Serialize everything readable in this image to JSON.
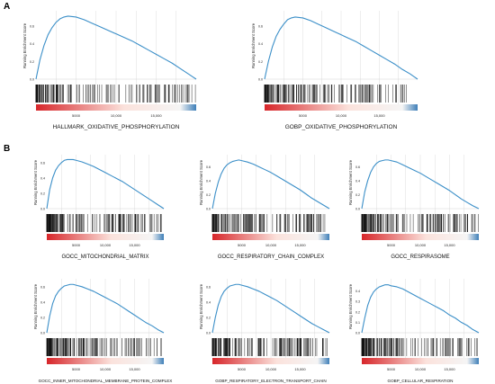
{
  "panels": [
    {
      "letter": "A"
    },
    {
      "letter": "B"
    }
  ],
  "colors": {
    "curve": "#3b8fc8",
    "grid": "#dedede",
    "hits": "#111111",
    "rank_start": "#d7262a",
    "rank_mid_light": "#fbe2dc",
    "rank_end_blue": "#3f7fb8"
  },
  "chart_data": [
    {
      "type": "line",
      "panel": "A",
      "title": "HALLMARK_OXIDATIVE_PHOSPHORYLATION",
      "ylabel": "Running Enrichment Score",
      "xlim": [
        0,
        20000
      ],
      "ylim": [
        0,
        0.75
      ],
      "yticks": [
        "0.6",
        "0.4",
        "0.2",
        "0.0"
      ],
      "xticks": [
        "5000",
        "10,000",
        "15,000"
      ],
      "x": [
        0,
        500,
        1000,
        1500,
        2000,
        2500,
        3000,
        3500,
        4000,
        5000,
        6000,
        7000,
        8000,
        9000,
        10000,
        11000,
        12000,
        13000,
        14000,
        15000,
        16000,
        17000,
        18000,
        19000,
        19500,
        20000
      ],
      "y": [
        0.0,
        0.22,
        0.38,
        0.5,
        0.58,
        0.64,
        0.68,
        0.7,
        0.71,
        0.7,
        0.67,
        0.63,
        0.59,
        0.55,
        0.51,
        0.47,
        0.43,
        0.38,
        0.33,
        0.28,
        0.23,
        0.18,
        0.12,
        0.06,
        0.03,
        0.0
      ]
    },
    {
      "type": "line",
      "panel": "A",
      "title": "GOBP_OXIDATIVE_PHOSPHORYLATION",
      "ylabel": "Running Enrichment Score",
      "xlim": [
        0,
        20000
      ],
      "ylim": [
        0,
        0.75
      ],
      "yticks": [
        "0.6",
        "0.4",
        "0.2",
        "0.0"
      ],
      "xticks": [
        "5000",
        "10,000",
        "15,000"
      ],
      "x": [
        0,
        500,
        1000,
        1500,
        2000,
        2500,
        3000,
        3500,
        4000,
        5000,
        6000,
        7000,
        8000,
        9000,
        10000,
        11000,
        12000,
        13000,
        14000,
        15000,
        16000,
        17000,
        18000,
        19000,
        19500,
        20000
      ],
      "y": [
        0.0,
        0.2,
        0.36,
        0.48,
        0.56,
        0.62,
        0.67,
        0.69,
        0.7,
        0.69,
        0.66,
        0.62,
        0.58,
        0.54,
        0.5,
        0.46,
        0.42,
        0.37,
        0.32,
        0.27,
        0.22,
        0.17,
        0.11,
        0.06,
        0.03,
        0.0
      ]
    },
    {
      "type": "line",
      "panel": "B",
      "title": "GOCC_MITOCHONDRIAL_MATRIX",
      "ylabel": "Running Enrichment Score",
      "xlim": [
        0,
        20000
      ],
      "ylim": [
        0,
        0.68
      ],
      "yticks": [
        "0.6",
        "0.4",
        "0.2",
        "0.0"
      ],
      "xticks": [
        "5000",
        "10,000",
        "15,000"
      ],
      "x": [
        0,
        500,
        1000,
        1500,
        2000,
        2500,
        3000,
        3500,
        4000,
        4500,
        5000,
        6000,
        7000,
        8000,
        9000,
        10000,
        11000,
        12000,
        13000,
        14000,
        15000,
        16000,
        17000,
        18000,
        19000,
        20000
      ],
      "y": [
        0.0,
        0.25,
        0.4,
        0.5,
        0.56,
        0.6,
        0.63,
        0.64,
        0.64,
        0.64,
        0.63,
        0.61,
        0.58,
        0.55,
        0.51,
        0.47,
        0.43,
        0.39,
        0.35,
        0.3,
        0.25,
        0.2,
        0.15,
        0.1,
        0.05,
        0.0
      ]
    },
    {
      "type": "line",
      "panel": "B",
      "title": "GOCC_RESPIRATORY_CHAIN_COMPLEX",
      "ylabel": "Running Enrichment Score",
      "xlim": [
        0,
        20000
      ],
      "ylim": [
        0,
        0.75
      ],
      "yticks": [
        "0.6",
        "0.4",
        "0.2",
        "0.0"
      ],
      "xticks": [
        "5000",
        "10,000",
        "15,000"
      ],
      "x": [
        0,
        500,
        1000,
        1500,
        2000,
        2500,
        3000,
        3500,
        4000,
        4500,
        5000,
        6000,
        7000,
        8000,
        9000,
        10000,
        11000,
        12000,
        13000,
        14000,
        15000,
        16000,
        17000,
        18000,
        19000,
        20000
      ],
      "y": [
        0.0,
        0.22,
        0.38,
        0.5,
        0.58,
        0.63,
        0.66,
        0.68,
        0.69,
        0.7,
        0.69,
        0.67,
        0.64,
        0.6,
        0.56,
        0.52,
        0.47,
        0.42,
        0.37,
        0.32,
        0.27,
        0.21,
        0.15,
        0.1,
        0.05,
        0.0
      ]
    },
    {
      "type": "line",
      "panel": "B",
      "title": "GOCC_RESPIRASOME",
      "ylabel": "Running Enrichment Score",
      "xlim": [
        0,
        20000
      ],
      "ylim": [
        0,
        0.75
      ],
      "yticks": [
        "0.6",
        "0.4",
        "0.2",
        "0.0"
      ],
      "xticks": [
        "5000",
        "10,000",
        "15,000"
      ],
      "x": [
        0,
        500,
        1000,
        1500,
        2000,
        2500,
        3000,
        3500,
        4000,
        4500,
        5000,
        6000,
        7000,
        8000,
        9000,
        10000,
        11000,
        12000,
        13000,
        14000,
        15000,
        16000,
        17000,
        18000,
        19000,
        20000
      ],
      "y": [
        0.0,
        0.24,
        0.4,
        0.52,
        0.6,
        0.65,
        0.68,
        0.69,
        0.7,
        0.7,
        0.69,
        0.67,
        0.63,
        0.59,
        0.55,
        0.51,
        0.46,
        0.41,
        0.36,
        0.31,
        0.26,
        0.2,
        0.14,
        0.09,
        0.04,
        0.0
      ]
    },
    {
      "type": "line",
      "panel": "B",
      "title": "GOCC_INNER_MITOCHONDRIAL_MEMBRANE_PROTEIN_COMPLEX",
      "ylabel": "Running Enrichment Score",
      "xlim": [
        0,
        20000
      ],
      "ylim": [
        0,
        0.68
      ],
      "yticks": [
        "0.6",
        "0.4",
        "0.2",
        "0.0"
      ],
      "xticks": [
        "5000",
        "10,000",
        "15,000"
      ],
      "x": [
        0,
        500,
        1000,
        1500,
        2000,
        2500,
        3000,
        3500,
        4000,
        4500,
        5000,
        6000,
        7000,
        8000,
        9000,
        10000,
        11000,
        12000,
        13000,
        14000,
        15000,
        16000,
        17000,
        18000,
        19000,
        20000
      ],
      "y": [
        0.0,
        0.22,
        0.38,
        0.48,
        0.54,
        0.58,
        0.61,
        0.62,
        0.63,
        0.63,
        0.62,
        0.6,
        0.57,
        0.54,
        0.5,
        0.46,
        0.42,
        0.38,
        0.33,
        0.28,
        0.23,
        0.18,
        0.13,
        0.09,
        0.04,
        0.0
      ]
    },
    {
      "type": "line",
      "panel": "B",
      "title": "GOBP_RESPIRATORY_ELECTRON_TRANSPORT_CHAIN",
      "ylabel": "Running Enrichment Score",
      "xlim": [
        0,
        20000
      ],
      "ylim": [
        0,
        0.68
      ],
      "yticks": [
        "0.6",
        "0.4",
        "0.2",
        "0.0"
      ],
      "xticks": [
        "5000",
        "10,000",
        "15,000"
      ],
      "x": [
        0,
        500,
        1000,
        1500,
        2000,
        2500,
        3000,
        3500,
        4000,
        4500,
        5000,
        6000,
        7000,
        8000,
        9000,
        10000,
        11000,
        12000,
        13000,
        14000,
        15000,
        16000,
        17000,
        18000,
        19000,
        20000
      ],
      "y": [
        0.0,
        0.2,
        0.36,
        0.47,
        0.54,
        0.58,
        0.61,
        0.62,
        0.63,
        0.63,
        0.62,
        0.6,
        0.57,
        0.54,
        0.5,
        0.46,
        0.42,
        0.37,
        0.32,
        0.27,
        0.22,
        0.17,
        0.12,
        0.08,
        0.04,
        0.0
      ]
    },
    {
      "type": "line",
      "panel": "B",
      "title": "GOBP_CELLULAR_RESPIRATION",
      "ylabel": "Running Enrichment Score",
      "xlim": [
        0,
        20000
      ],
      "ylim": [
        0,
        0.5
      ],
      "yticks": [
        "0.4",
        "0.3",
        "0.2",
        "0.1",
        "0.0"
      ],
      "xticks": [
        "5000",
        "10,000",
        "15,000"
      ],
      "x": [
        0,
        500,
        1000,
        1500,
        2000,
        2500,
        3000,
        3500,
        4000,
        4500,
        5000,
        6000,
        7000,
        8000,
        9000,
        10000,
        11000,
        12000,
        13000,
        14000,
        15000,
        16000,
        17000,
        18000,
        19000,
        20000
      ],
      "y": [
        0.0,
        0.14,
        0.26,
        0.34,
        0.39,
        0.42,
        0.44,
        0.45,
        0.46,
        0.46,
        0.45,
        0.44,
        0.42,
        0.39,
        0.36,
        0.33,
        0.3,
        0.27,
        0.24,
        0.21,
        0.17,
        0.14,
        0.1,
        0.07,
        0.03,
        0.0
      ]
    }
  ]
}
